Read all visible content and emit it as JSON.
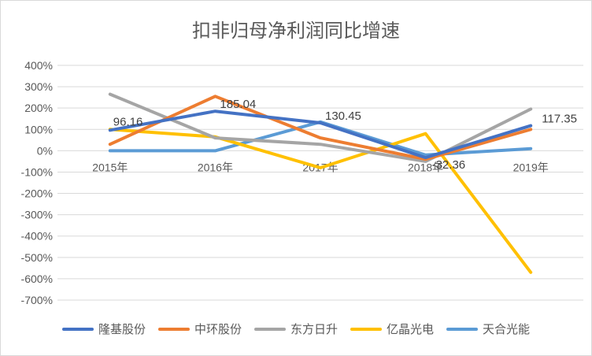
{
  "chart_data": {
    "type": "line",
    "title": "扣非归母净利润同比增速",
    "categories": [
      "2015年",
      "2016年",
      "2017年",
      "2018年",
      "2019年"
    ],
    "ylim": [
      -700,
      400
    ],
    "yticks": [
      "400%",
      "300%",
      "200%",
      "100%",
      "0%",
      "-100%",
      "-200%",
      "-300%",
      "-400%",
      "-500%",
      "-600%",
      "-700%"
    ],
    "ytick_values": [
      400,
      300,
      200,
      100,
      0,
      -100,
      -200,
      -300,
      -400,
      -500,
      -600,
      -700
    ],
    "grid": true,
    "legend_position": "bottom",
    "series": [
      {
        "name": "隆基股份",
        "color": "#4472C4",
        "values": [
          96.16,
          185.04,
          130.45,
          -32.36,
          117.35
        ]
      },
      {
        "name": "中环股份",
        "color": "#ED7D31",
        "values": [
          30,
          255,
          60,
          -40,
          100
        ]
      },
      {
        "name": "东方日升",
        "color": "#A5A5A5",
        "values": [
          265,
          60,
          30,
          -50,
          195
        ]
      },
      {
        "name": "亿晶光电",
        "color": "#FFC000",
        "values": [
          100,
          65,
          -80,
          80,
          -570
        ]
      },
      {
        "name": "天合光能",
        "color": "#5B9BD5",
        "values": [
          0,
          0,
          135,
          -20,
          10
        ]
      }
    ],
    "data_labels": [
      "96.16",
      "185.04",
      "130.45",
      "-32.36",
      "117.35"
    ]
  }
}
